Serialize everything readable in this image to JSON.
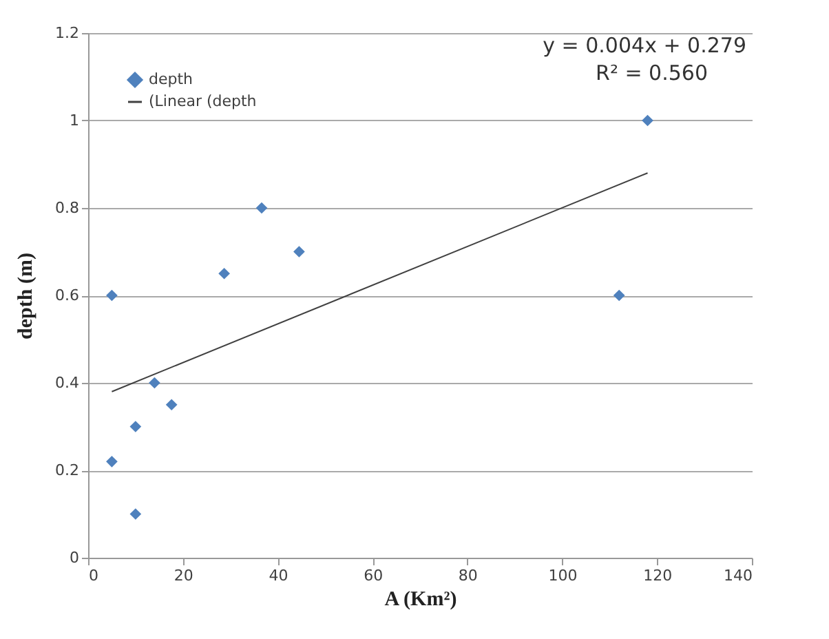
{
  "chart_data": {
    "type": "scatter",
    "xlabel": "A (Km²)",
    "ylabel": "depth (m)",
    "xlim": [
      0,
      140
    ],
    "xticks": [
      0,
      20,
      40,
      60,
      80,
      100,
      120,
      140
    ],
    "ylim": [
      0,
      1.2
    ],
    "yticks": [
      0,
      0.2,
      0.4,
      0.6,
      0.8,
      1,
      1.2
    ],
    "grid": "y",
    "legend": "top left",
    "annotations": [
      "y = 0.004x + 0.279",
      "R² = 0.560"
    ],
    "series": [
      {
        "name": "depth",
        "marker": "diamond",
        "color": "#4f81bd",
        "x": [
          5,
          5,
          10,
          10,
          14,
          17.6,
          28.7,
          36.6,
          44.5,
          112,
          118
        ],
        "values": [
          0.6,
          0.22,
          0.1,
          0.3,
          0.4,
          0.35,
          0.65,
          0.8,
          0.7,
          0.6,
          1.0
        ]
      },
      {
        "name": "(Linear (depth",
        "type": "line",
        "marker": "none",
        "color": "#404040",
        "x": [
          5,
          118
        ],
        "values": [
          0.38,
          0.88
        ]
      }
    ]
  }
}
